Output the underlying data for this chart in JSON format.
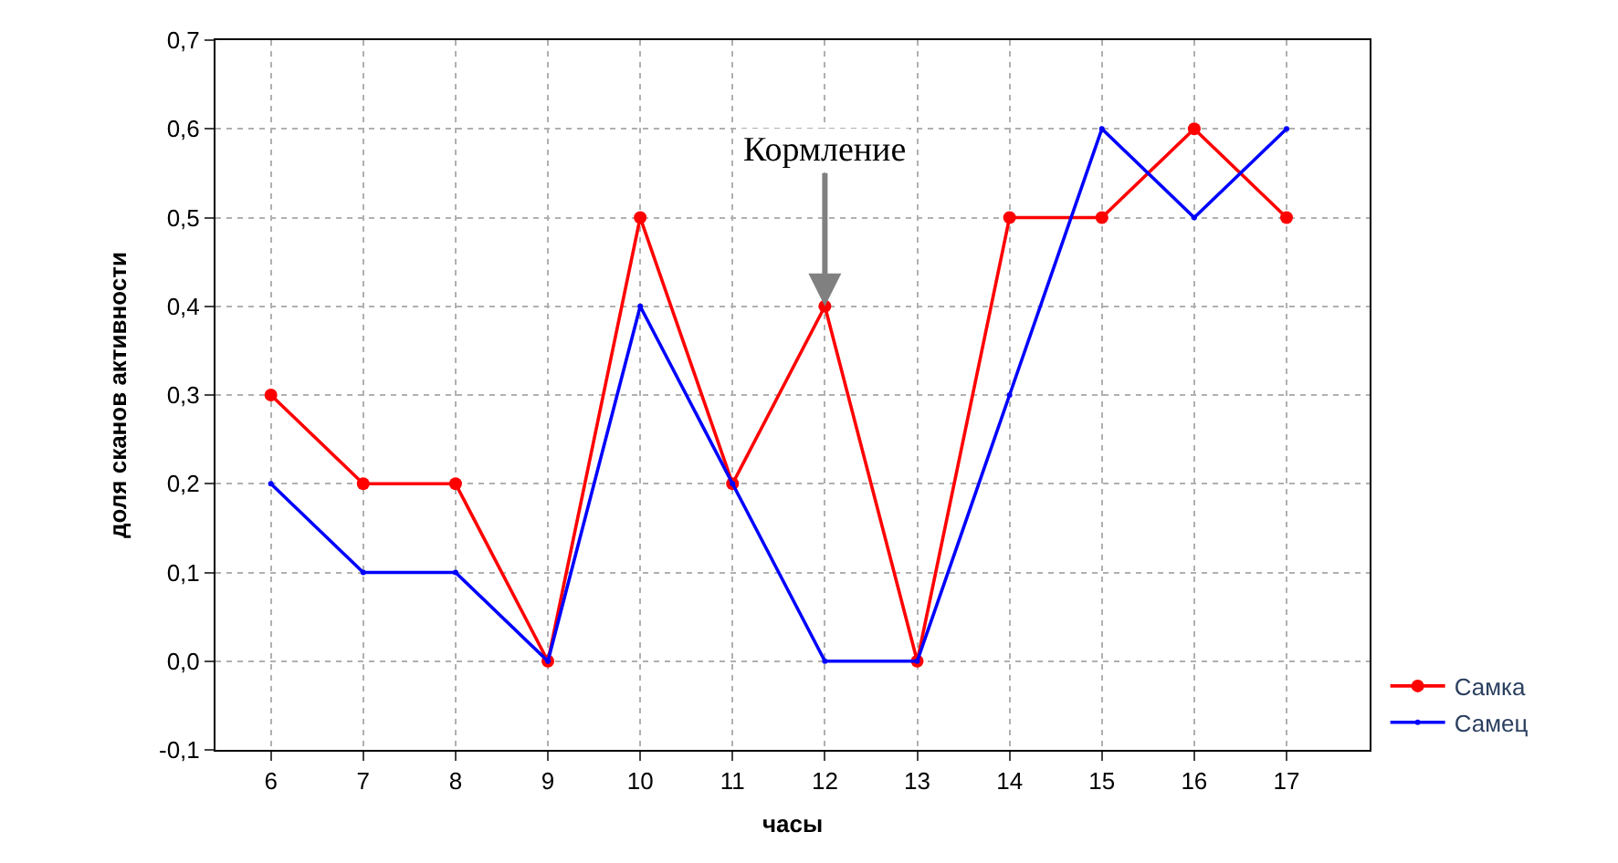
{
  "chart_data": {
    "type": "line",
    "xlabel": "часы",
    "ylabel": "доля сканов активности",
    "x": [
      6,
      7,
      8,
      9,
      10,
      11,
      12,
      13,
      14,
      15,
      16,
      17
    ],
    "series": [
      {
        "name": "Самка",
        "color": "#ff0000",
        "values": [
          0.3,
          0.2,
          0.2,
          0.0,
          0.5,
          0.2,
          0.4,
          0.0,
          0.5,
          0.5,
          0.6,
          0.5
        ]
      },
      {
        "name": "Самец",
        "color": "#0000ff",
        "values": [
          0.2,
          0.1,
          0.1,
          0.0,
          0.4,
          0.2,
          0.0,
          0.0,
          0.3,
          0.6,
          0.5,
          0.6
        ]
      }
    ],
    "xlim": [
      5.4,
      17.9
    ],
    "xticks": [
      6,
      7,
      8,
      9,
      10,
      11,
      12,
      13,
      14,
      15,
      16,
      17
    ],
    "ylim": [
      -0.1,
      0.7
    ],
    "yticks": [
      {
        "value": -0.1,
        "label": "-0,1"
      },
      {
        "value": 0.0,
        "label": "0,0"
      },
      {
        "value": 0.1,
        "label": "0,1"
      },
      {
        "value": 0.2,
        "label": "0,2"
      },
      {
        "value": 0.3,
        "label": "0,3"
      },
      {
        "value": 0.4,
        "label": "0,4"
      },
      {
        "value": 0.5,
        "label": "0,5"
      },
      {
        "value": 0.6,
        "label": "0,6"
      },
      {
        "value": 0.7,
        "label": "0,7"
      }
    ],
    "annotations": [
      {
        "text": "Кормление",
        "x": 12,
        "y": 0.4
      }
    ],
    "grid": true,
    "legend": "bottom right",
    "marker": "circle",
    "line_style": "solid"
  }
}
